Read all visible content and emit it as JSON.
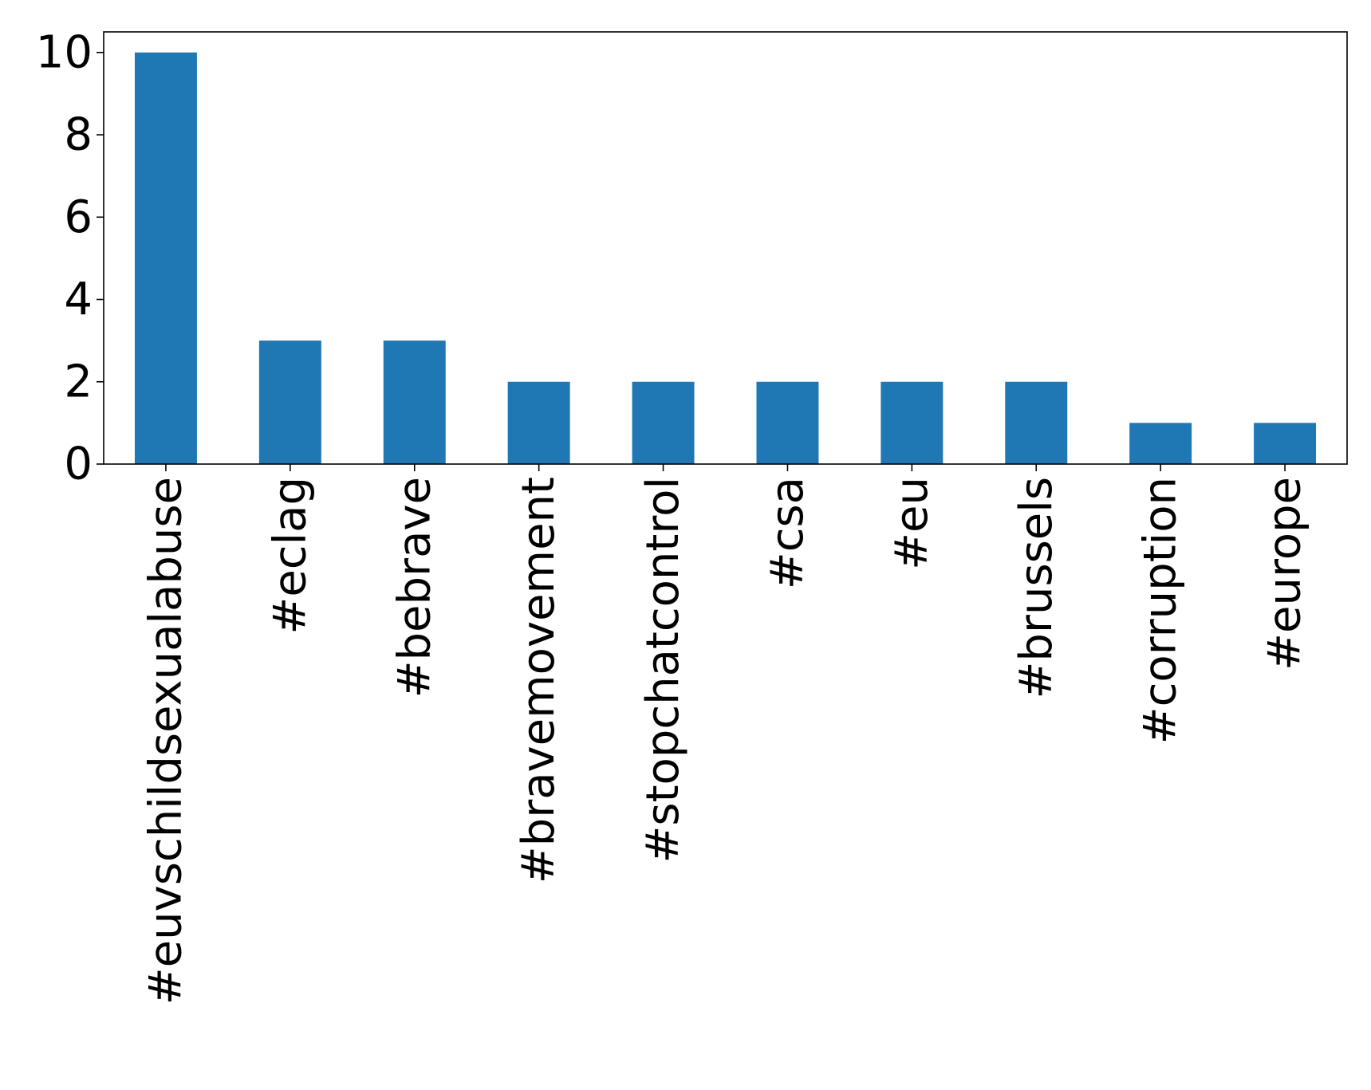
{
  "chart_data": {
    "type": "bar",
    "categories": [
      "#euvschildsexualabuse",
      "#eclag",
      "#bebrave",
      "#bravemovement",
      "#stopchatcontrol",
      "#csa",
      "#eu",
      "#brussels",
      "#corruption",
      "#europe"
    ],
    "values": [
      10,
      3,
      3,
      2,
      2,
      2,
      2,
      2,
      1,
      1
    ],
    "yticks": [
      "0",
      "2",
      "4",
      "6",
      "8",
      "10"
    ],
    "ylim": [
      0,
      10.5
    ],
    "title": "",
    "xlabel": "",
    "ylabel": "",
    "grid": false,
    "bar_color": "#1f77b4"
  }
}
